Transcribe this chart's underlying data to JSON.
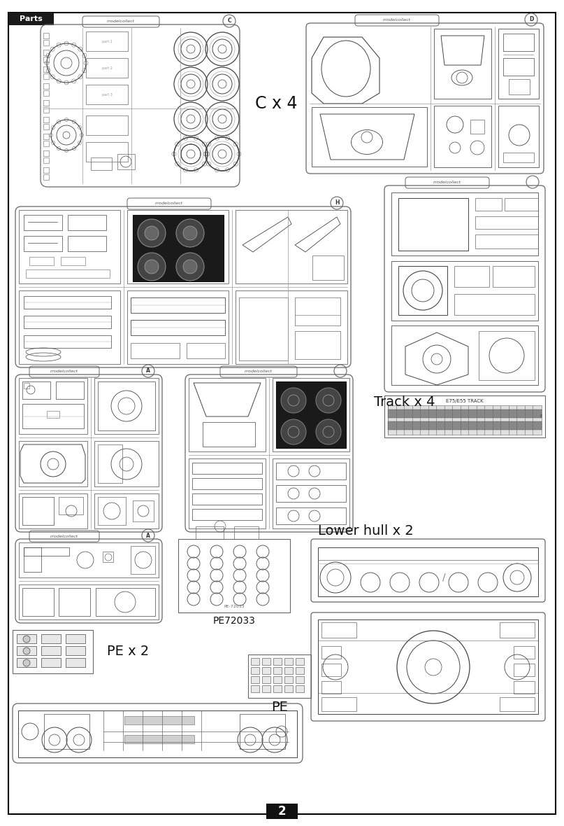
{
  "bg_color": "#ffffff",
  "page_num": "2",
  "header_text": "Parts",
  "label_C": "C x 4",
  "label_track": "Track x 4",
  "label_track_sub": "E75/E55 TRACK",
  "label_lower": "Lower hull x 2",
  "label_PE": "PE",
  "label_PE2": "PE x 2",
  "label_PE72033": "PE72033",
  "label_PE72033_sub": "PE-72033"
}
